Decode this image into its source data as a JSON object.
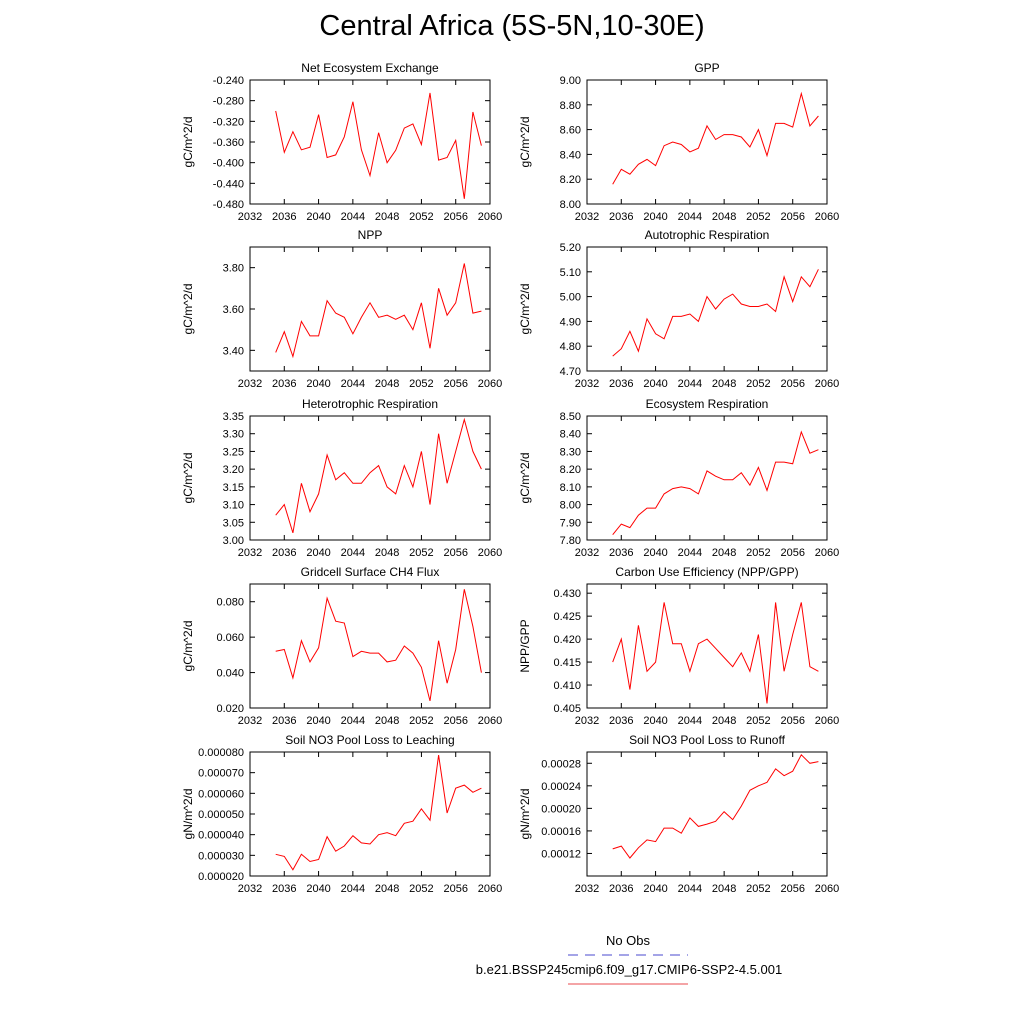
{
  "title": "Central Africa (5S-5N,10-30E)",
  "legend": {
    "entries": [
      {
        "label": "No Obs",
        "color": "#4a4acf",
        "dash": true
      },
      {
        "label": "b.e21.BSSP245cmip6.f09_g17.CMIP6-SSP2-4.5.001",
        "color": "#e8484c",
        "dash": false
      }
    ]
  },
  "series_color": "#ff0000",
  "chart_data": [
    {
      "type": "line",
      "title": "Net Ecosystem Exchange",
      "ylabel": "gC/m^2/d",
      "xlabel": "",
      "xlim": [
        2032,
        2060
      ],
      "ylim": [
        -0.48,
        -0.24
      ],
      "xticks": [
        "2032",
        "2036",
        "2040",
        "2044",
        "2048",
        "2052",
        "2056",
        "2060"
      ],
      "yticks": [
        "-0.480",
        "-0.440",
        "-0.400",
        "-0.360",
        "-0.320",
        "-0.280",
        "-0.240"
      ],
      "x": [
        2035,
        2036,
        2037,
        2038,
        2039,
        2040,
        2041,
        2042,
        2043,
        2044,
        2045,
        2046,
        2047,
        2048,
        2049,
        2050,
        2051,
        2052,
        2053,
        2054,
        2055,
        2056,
        2057,
        2058,
        2059
      ],
      "y": [
        -0.3,
        -0.38,
        -0.34,
        -0.375,
        -0.37,
        -0.307,
        -0.39,
        -0.385,
        -0.35,
        -0.282,
        -0.375,
        -0.425,
        -0.342,
        -0.4,
        -0.376,
        -0.333,
        -0.325,
        -0.365,
        -0.265,
        -0.395,
        -0.39,
        -0.357,
        -0.47,
        -0.302,
        -0.367
      ]
    },
    {
      "type": "line",
      "title": "GPP",
      "ylabel": "gC/m^2/d",
      "xlabel": "",
      "xlim": [
        2032,
        2060
      ],
      "ylim": [
        8.0,
        9.0
      ],
      "xticks": [
        "2032",
        "2036",
        "2040",
        "2044",
        "2048",
        "2052",
        "2056",
        "2060"
      ],
      "yticks": [
        "8.00",
        "8.20",
        "8.40",
        "8.60",
        "8.80",
        "9.00"
      ],
      "x": [
        2035,
        2036,
        2037,
        2038,
        2039,
        2040,
        2041,
        2042,
        2043,
        2044,
        2045,
        2046,
        2047,
        2048,
        2049,
        2050,
        2051,
        2052,
        2053,
        2054,
        2055,
        2056,
        2057,
        2058,
        2059
      ],
      "y": [
        8.16,
        8.28,
        8.24,
        8.32,
        8.36,
        8.31,
        8.47,
        8.5,
        8.48,
        8.42,
        8.45,
        8.63,
        8.52,
        8.56,
        8.56,
        8.54,
        8.46,
        8.6,
        8.39,
        8.65,
        8.65,
        8.62,
        8.89,
        8.63,
        8.71
      ]
    },
    {
      "type": "line",
      "title": "NPP",
      "ylabel": "gC/m^2/d",
      "xlabel": "",
      "xlim": [
        2032,
        2060
      ],
      "ylim": [
        3.3,
        3.9
      ],
      "xticks": [
        "2032",
        "2036",
        "2040",
        "2044",
        "2048",
        "2052",
        "2056",
        "2060"
      ],
      "yticks": [
        "3.40",
        "3.60",
        "3.80"
      ],
      "x": [
        2035,
        2036,
        2037,
        2038,
        2039,
        2040,
        2041,
        2042,
        2043,
        2044,
        2045,
        2046,
        2047,
        2048,
        2049,
        2050,
        2051,
        2052,
        2053,
        2054,
        2055,
        2056,
        2057,
        2058,
        2059
      ],
      "y": [
        3.39,
        3.49,
        3.37,
        3.54,
        3.47,
        3.47,
        3.64,
        3.58,
        3.56,
        3.48,
        3.56,
        3.63,
        3.56,
        3.57,
        3.55,
        3.57,
        3.5,
        3.63,
        3.41,
        3.7,
        3.57,
        3.63,
        3.82,
        3.58,
        3.59
      ]
    },
    {
      "type": "line",
      "title": "Autotrophic Respiration",
      "ylabel": "gC/m^2/d",
      "xlabel": "",
      "xlim": [
        2032,
        2060
      ],
      "ylim": [
        4.7,
        5.2
      ],
      "xticks": [
        "2032",
        "2036",
        "2040",
        "2044",
        "2048",
        "2052",
        "2056",
        "2060"
      ],
      "yticks": [
        "4.70",
        "4.80",
        "4.90",
        "5.00",
        "5.10",
        "5.20"
      ],
      "x": [
        2035,
        2036,
        2037,
        2038,
        2039,
        2040,
        2041,
        2042,
        2043,
        2044,
        2045,
        2046,
        2047,
        2048,
        2049,
        2050,
        2051,
        2052,
        2053,
        2054,
        2055,
        2056,
        2057,
        2058,
        2059
      ],
      "y": [
        4.76,
        4.79,
        4.86,
        4.78,
        4.91,
        4.85,
        4.83,
        4.92,
        4.92,
        4.93,
        4.9,
        5.0,
        4.95,
        4.99,
        5.01,
        4.97,
        4.96,
        4.96,
        4.97,
        4.94,
        5.08,
        4.98,
        5.08,
        5.04,
        5.11
      ]
    },
    {
      "type": "line",
      "title": "Heterotrophic Respiration",
      "ylabel": "gC/m^2/d",
      "xlabel": "",
      "xlim": [
        2032,
        2060
      ],
      "ylim": [
        3.0,
        3.35
      ],
      "xticks": [
        "2032",
        "2036",
        "2040",
        "2044",
        "2048",
        "2052",
        "2056",
        "2060"
      ],
      "yticks": [
        "3.00",
        "3.05",
        "3.10",
        "3.15",
        "3.20",
        "3.25",
        "3.30",
        "3.35"
      ],
      "x": [
        2035,
        2036,
        2037,
        2038,
        2039,
        2040,
        2041,
        2042,
        2043,
        2044,
        2045,
        2046,
        2047,
        2048,
        2049,
        2050,
        2051,
        2052,
        2053,
        2054,
        2055,
        2056,
        2057,
        2058,
        2059
      ],
      "y": [
        3.07,
        3.1,
        3.02,
        3.16,
        3.08,
        3.13,
        3.24,
        3.17,
        3.19,
        3.16,
        3.16,
        3.19,
        3.21,
        3.15,
        3.13,
        3.21,
        3.15,
        3.25,
        3.1,
        3.3,
        3.16,
        3.25,
        3.34,
        3.25,
        3.2
      ]
    },
    {
      "type": "line",
      "title": "Ecosystem Respiration",
      "ylabel": "gC/m^2/d",
      "xlabel": "",
      "xlim": [
        2032,
        2060
      ],
      "ylim": [
        7.8,
        8.5
      ],
      "xticks": [
        "2032",
        "2036",
        "2040",
        "2044",
        "2048",
        "2052",
        "2056",
        "2060"
      ],
      "yticks": [
        "7.80",
        "7.90",
        "8.00",
        "8.10",
        "8.20",
        "8.30",
        "8.40",
        "8.50"
      ],
      "x": [
        2035,
        2036,
        2037,
        2038,
        2039,
        2040,
        2041,
        2042,
        2043,
        2044,
        2045,
        2046,
        2047,
        2048,
        2049,
        2050,
        2051,
        2052,
        2053,
        2054,
        2055,
        2056,
        2057,
        2058,
        2059
      ],
      "y": [
        7.83,
        7.89,
        7.87,
        7.94,
        7.98,
        7.98,
        8.06,
        8.09,
        8.1,
        8.09,
        8.06,
        8.19,
        8.16,
        8.14,
        8.14,
        8.18,
        8.11,
        8.21,
        8.08,
        8.24,
        8.24,
        8.23,
        8.41,
        8.29,
        8.31
      ]
    },
    {
      "type": "line",
      "title": "Gridcell Surface CH4 Flux",
      "ylabel": "gC/m^2/d",
      "xlabel": "",
      "xlim": [
        2032,
        2060
      ],
      "ylim": [
        0.02,
        0.09
      ],
      "xticks": [
        "2032",
        "2036",
        "2040",
        "2044",
        "2048",
        "2052",
        "2056",
        "2060"
      ],
      "yticks": [
        "0.020",
        "0.040",
        "0.060",
        "0.080"
      ],
      "x": [
        2035,
        2036,
        2037,
        2038,
        2039,
        2040,
        2041,
        2042,
        2043,
        2044,
        2045,
        2046,
        2047,
        2048,
        2049,
        2050,
        2051,
        2052,
        2053,
        2054,
        2055,
        2056,
        2057,
        2058,
        2059
      ],
      "y": [
        0.052,
        0.053,
        0.037,
        0.058,
        0.046,
        0.054,
        0.082,
        0.069,
        0.068,
        0.049,
        0.052,
        0.051,
        0.051,
        0.046,
        0.047,
        0.055,
        0.051,
        0.043,
        0.024,
        0.058,
        0.034,
        0.053,
        0.087,
        0.066,
        0.04
      ]
    },
    {
      "type": "line",
      "title": "Carbon Use Efficiency (NPP/GPP)",
      "ylabel": "NPP/GPP",
      "xlabel": "",
      "xlim": [
        2032,
        2060
      ],
      "ylim": [
        0.405,
        0.432
      ],
      "xticks": [
        "2032",
        "2036",
        "2040",
        "2044",
        "2048",
        "2052",
        "2056",
        "2060"
      ],
      "yticks": [
        "0.405",
        "0.410",
        "0.415",
        "0.420",
        "0.425",
        "0.430"
      ],
      "x": [
        2035,
        2036,
        2037,
        2038,
        2039,
        2040,
        2041,
        2042,
        2043,
        2044,
        2045,
        2046,
        2047,
        2048,
        2049,
        2050,
        2051,
        2052,
        2053,
        2054,
        2055,
        2056,
        2057,
        2058,
        2059
      ],
      "y": [
        0.415,
        0.42,
        0.409,
        0.423,
        0.413,
        0.415,
        0.428,
        0.419,
        0.419,
        0.413,
        0.419,
        0.42,
        0.418,
        0.416,
        0.414,
        0.417,
        0.413,
        0.421,
        0.406,
        0.428,
        0.413,
        0.421,
        0.428,
        0.414,
        0.413
      ]
    },
    {
      "type": "line",
      "title": "Soil NO3 Pool Loss to Leaching",
      "ylabel": "gN/m^2/d",
      "xlabel": "",
      "xlim": [
        2032,
        2060
      ],
      "ylim": [
        2e-05,
        8e-05
      ],
      "xticks": [
        "2032",
        "2036",
        "2040",
        "2044",
        "2048",
        "2052",
        "2056",
        "2060"
      ],
      "yticks": [
        "0.000020",
        "0.000030",
        "0.000040",
        "0.000050",
        "0.000060",
        "0.000070",
        "0.000080"
      ],
      "x": [
        2035,
        2036,
        2037,
        2038,
        2039,
        2040,
        2041,
        2042,
        2043,
        2044,
        2045,
        2046,
        2047,
        2048,
        2049,
        2050,
        2051,
        2052,
        2053,
        2054,
        2055,
        2056,
        2057,
        2058,
        2059
      ],
      "y": [
        3.05e-05,
        2.95e-05,
        2.3e-05,
        3.05e-05,
        2.7e-05,
        2.8e-05,
        3.9e-05,
        3.2e-05,
        3.45e-05,
        3.95e-05,
        3.6e-05,
        3.55e-05,
        4e-05,
        4.1e-05,
        3.95e-05,
        4.55e-05,
        4.65e-05,
        5.25e-05,
        4.7e-05,
        7.85e-05,
        5.05e-05,
        6.25e-05,
        6.4e-05,
        6.05e-05,
        6.25e-05
      ]
    },
    {
      "type": "line",
      "title": "Soil NO3 Pool Loss to Runoff",
      "ylabel": "gN/m^2/d",
      "xlabel": "",
      "xlim": [
        2032,
        2060
      ],
      "ylim": [
        8e-05,
        0.0003
      ],
      "xticks": [
        "2032",
        "2036",
        "2040",
        "2044",
        "2048",
        "2052",
        "2056",
        "2060"
      ],
      "yticks": [
        "0.00012",
        "0.00016",
        "0.00020",
        "0.00024",
        "0.00028"
      ],
      "x": [
        2035,
        2036,
        2037,
        2038,
        2039,
        2040,
        2041,
        2042,
        2043,
        2044,
        2045,
        2046,
        2047,
        2048,
        2049,
        2050,
        2051,
        2052,
        2053,
        2054,
        2055,
        2056,
        2057,
        2058,
        2059
      ],
      "y": [
        0.000128,
        0.000133,
        0.000112,
        0.00013,
        0.000144,
        0.000141,
        0.000165,
        0.000165,
        0.000156,
        0.000183,
        0.000168,
        0.000172,
        0.000177,
        0.000194,
        0.00018,
        0.000204,
        0.000232,
        0.00024,
        0.000246,
        0.00027,
        0.000258,
        0.000266,
        0.000295,
        0.00028,
        0.000283
      ]
    }
  ]
}
